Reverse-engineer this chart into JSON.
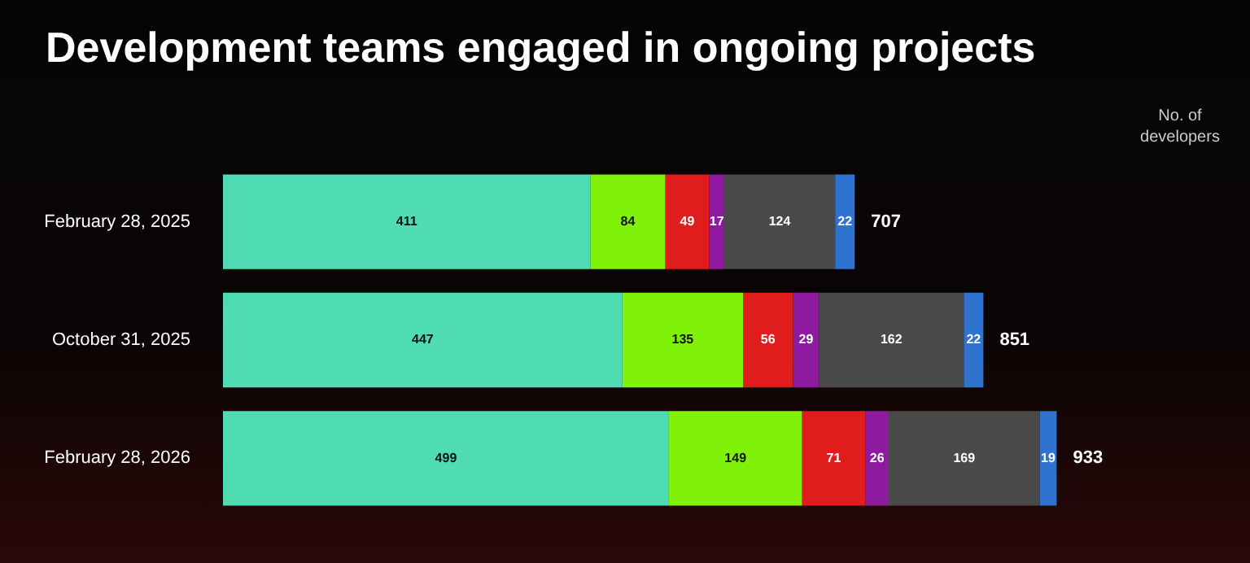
{
  "chart_data": {
    "type": "bar",
    "title": "Development teams engaged in ongoing projects",
    "orientation": "horizontal",
    "stacked": true,
    "categories": [
      "February 28, 2025",
      "October 31, 2025",
      "February 28, 2026"
    ],
    "series": [
      {
        "color": "#4fdcb2",
        "values": [
          411,
          447,
          499
        ]
      },
      {
        "color": "#80f20a",
        "values": [
          84,
          135,
          149
        ]
      },
      {
        "color": "#e01c1c",
        "values": [
          49,
          56,
          71
        ]
      },
      {
        "color": "#8e1aa0",
        "values": [
          17,
          29,
          26
        ]
      },
      {
        "color": "#4a4a4a",
        "values": [
          124,
          162,
          169
        ]
      },
      {
        "color": "#2f72d0",
        "values": [
          22,
          22,
          19
        ]
      }
    ],
    "data_labels": true,
    "totals": [
      "707",
      "851",
      "933"
    ],
    "annotations": [
      "No. of developers"
    ],
    "legend": false
  }
}
